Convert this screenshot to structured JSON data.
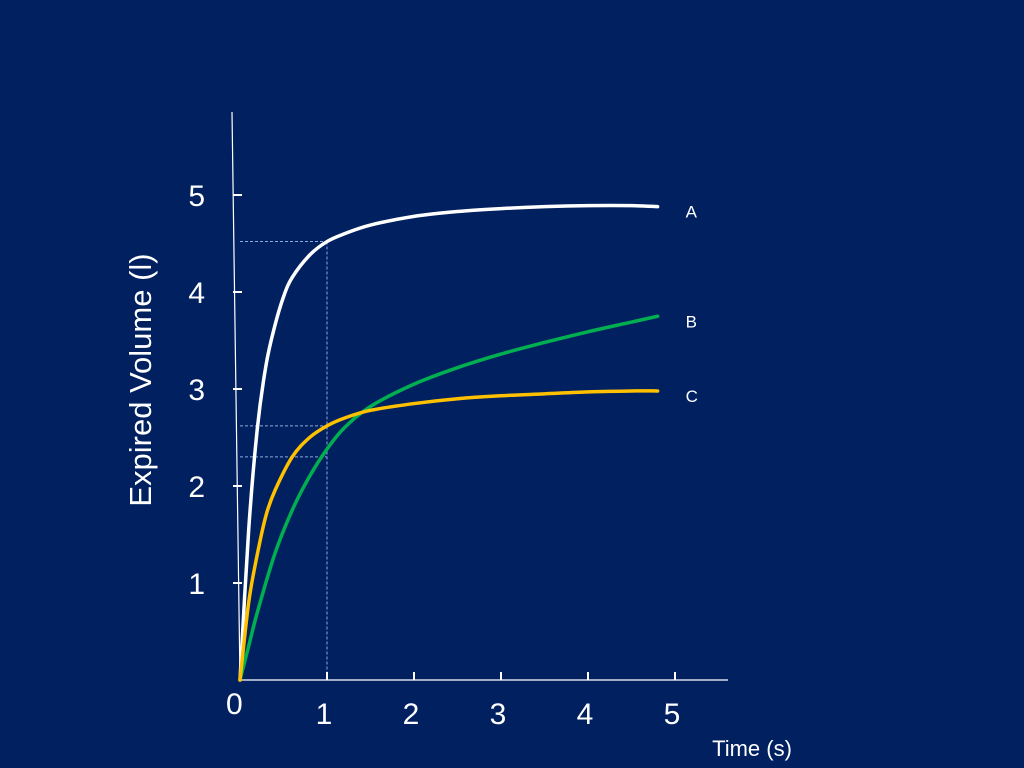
{
  "chart_data": {
    "type": "line",
    "title": "",
    "xlabel": "Time (s)",
    "ylabel": "Expired Volume (l)",
    "origin_label": "0",
    "x_ticks": [
      1,
      2,
      3,
      4,
      5
    ],
    "x_tick_labels": [
      "1",
      "2",
      "3",
      "4",
      "5"
    ],
    "y_ticks": [
      1,
      2,
      3,
      4,
      5
    ],
    "y_tick_labels": [
      "1",
      "2",
      "3",
      "4",
      "5"
    ],
    "xlim": [
      0,
      5.6
    ],
    "ylim": [
      0,
      5.3
    ],
    "grid": false,
    "series": [
      {
        "name": "A",
        "color": "#ffffff",
        "x": [
          0,
          0.1,
          0.2,
          0.3,
          0.4,
          0.5,
          0.6,
          0.8,
          1.0,
          1.2,
          1.5,
          2.0,
          2.5,
          3.0,
          3.5,
          4.0,
          4.5,
          4.8
        ],
        "y": [
          0,
          1.55,
          2.6,
          3.25,
          3.65,
          3.95,
          4.15,
          4.38,
          4.52,
          4.6,
          4.69,
          4.78,
          4.83,
          4.86,
          4.88,
          4.89,
          4.89,
          4.88
        ]
      },
      {
        "name": "B",
        "color": "#00b050",
        "x": [
          0,
          0.1,
          0.2,
          0.4,
          0.6,
          0.8,
          1.0,
          1.2,
          1.5,
          2.0,
          2.5,
          3.0,
          3.5,
          4.0,
          4.5,
          4.8
        ],
        "y": [
          0,
          0.35,
          0.7,
          1.3,
          1.75,
          2.1,
          2.38,
          2.6,
          2.82,
          3.05,
          3.22,
          3.36,
          3.48,
          3.59,
          3.69,
          3.75
        ]
      },
      {
        "name": "C",
        "color": "#ffc000",
        "x": [
          0,
          0.1,
          0.2,
          0.3,
          0.4,
          0.6,
          0.8,
          1.0,
          1.2,
          1.5,
          2.0,
          2.5,
          3.0,
          3.5,
          4.0,
          4.5,
          4.8
        ],
        "y": [
          0,
          0.8,
          1.3,
          1.7,
          1.95,
          2.3,
          2.5,
          2.62,
          2.7,
          2.78,
          2.85,
          2.9,
          2.93,
          2.95,
          2.97,
          2.98,
          2.98
        ]
      }
    ],
    "reference_lines": {
      "x": 1,
      "y_values": [
        4.52,
        2.62,
        2.3
      ]
    }
  }
}
